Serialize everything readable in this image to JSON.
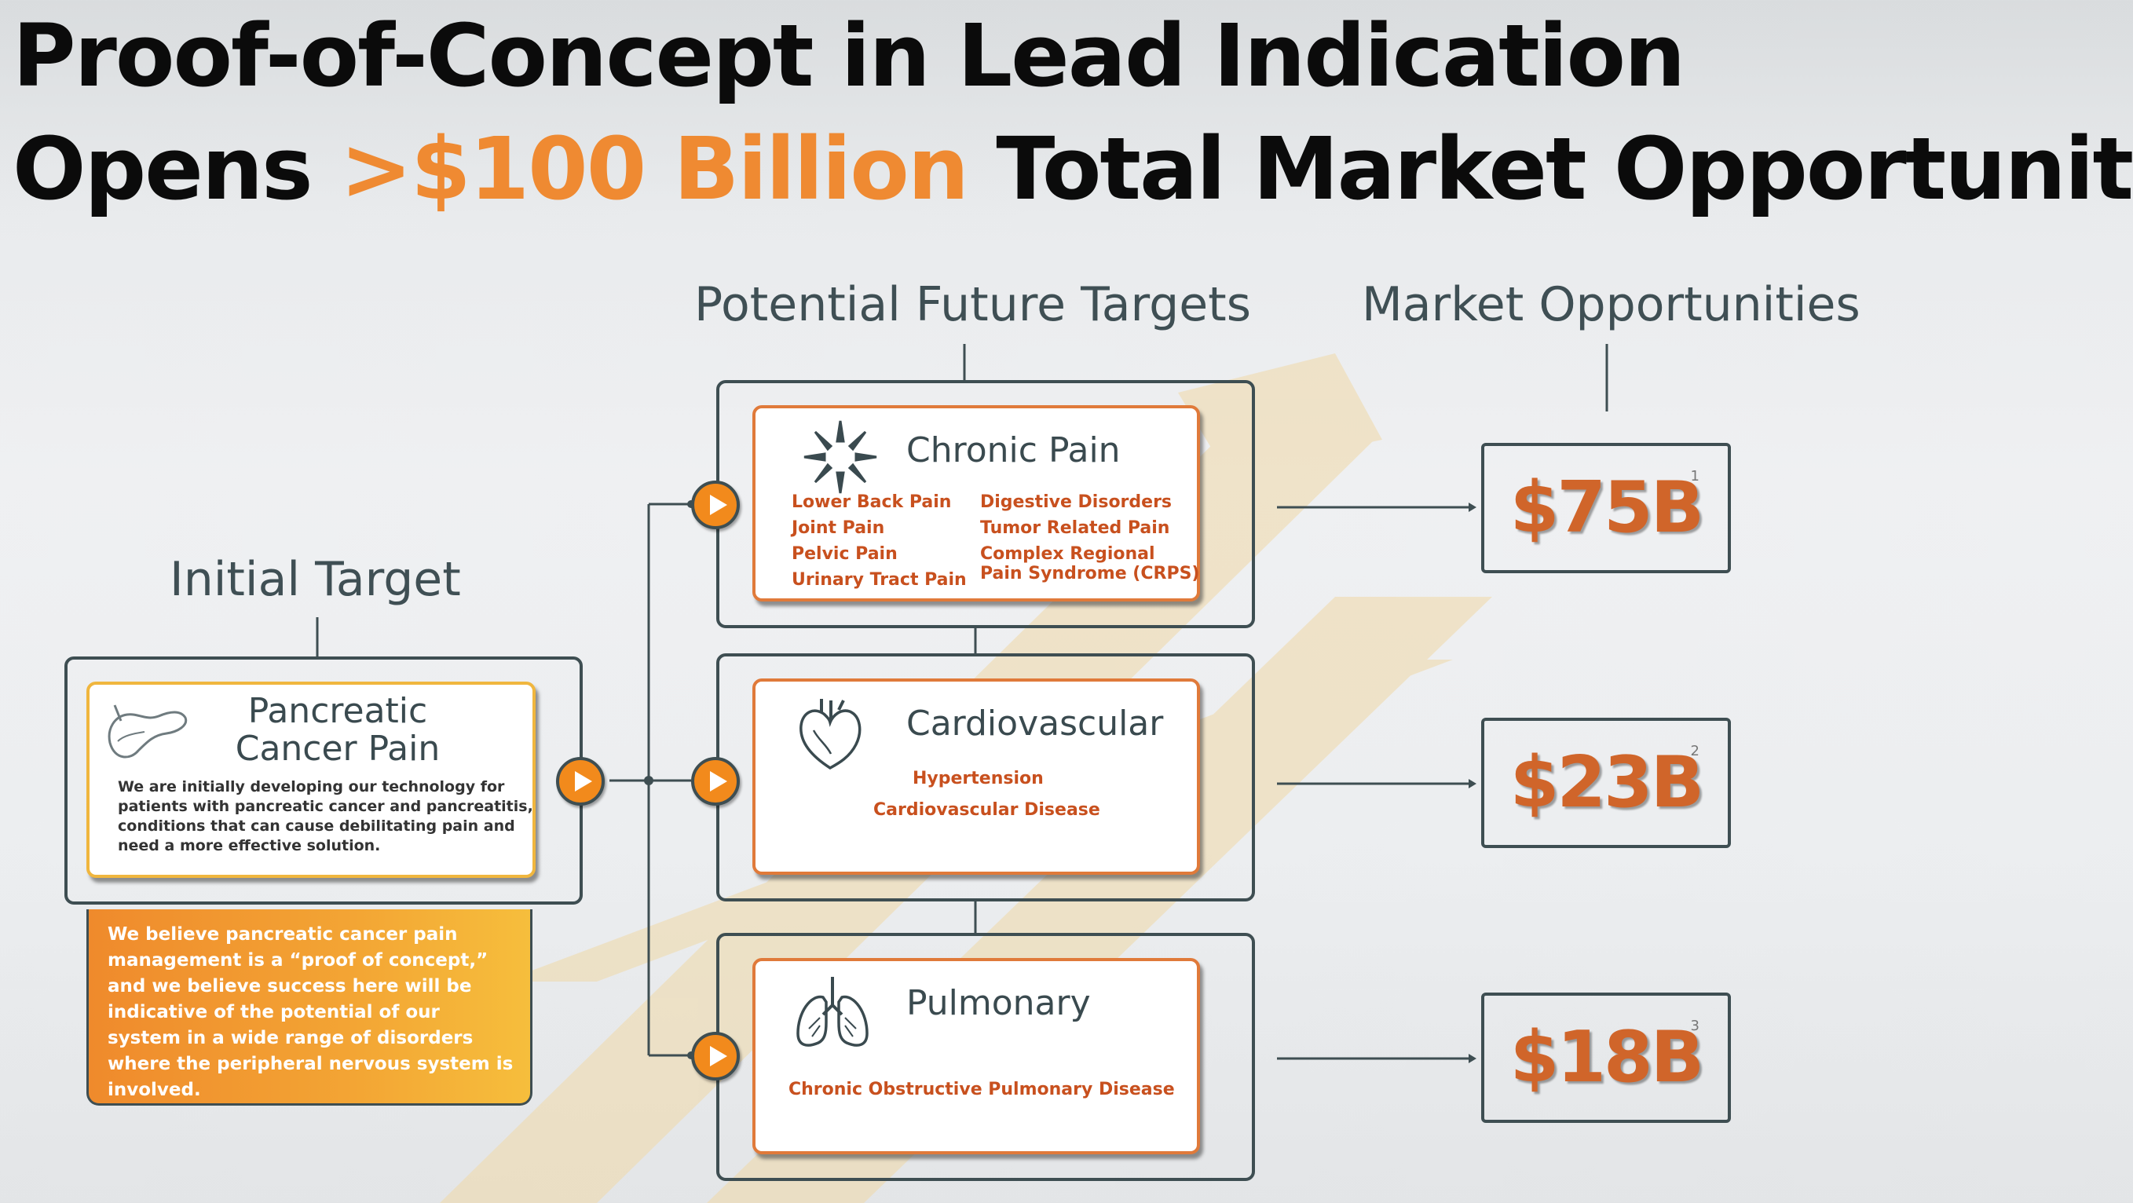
{
  "title": {
    "line1": "Proof-of-Concept in Lead Indication",
    "line2_before": "Opens ",
    "line2_highlight": ">$100 Billion",
    "line2_after": " Total Market Opportunity"
  },
  "headers": {
    "future": "Potential Future Targets",
    "market": "Market Opportunities",
    "initial": "Initial Target"
  },
  "initial_target": {
    "title_line1": "Pancreatic",
    "title_line2": "Cancer Pain",
    "description": "We are initially developing our technology for patients with pancreatic cancer and pancreatitis, conditions that can cause debilitating pain and need a more effective solution.",
    "icon": "pancreas-icon",
    "belief": "We believe pancreatic cancer pain management is a “proof of concept,” and we believe success here will be indicative of the potential of our system in a wide range of disorders where the peripheral nervous system is involved."
  },
  "future_targets": [
    {
      "title": "Chronic Pain",
      "icon": "nerve-burst-icon",
      "items_left": [
        "Lower Back Pain",
        "Joint Pain",
        "Pelvic Pain",
        "Urinary Tract Pain"
      ],
      "items_right": [
        "Digestive Disorders",
        "Tumor Related Pain",
        "Complex Regional",
        "Pain Syndrome (CRPS)"
      ]
    },
    {
      "title": "Cardiovascular",
      "icon": "heart-icon",
      "items": [
        "Hypertension",
        "Cardiovascular Disease"
      ]
    },
    {
      "title": "Pulmonary",
      "icon": "lungs-icon",
      "items": [
        "Chronic Obstructive Pulmonary Disease"
      ]
    }
  ],
  "markets": [
    {
      "value": "$75B",
      "footnote": "1"
    },
    {
      "value": "$23B",
      "footnote": "2"
    },
    {
      "value": "$18B",
      "footnote": "3"
    }
  ],
  "colors": {
    "accent_orange": "#ef8a32",
    "item_text": "#c8501e",
    "frame": "#3e4e52"
  }
}
